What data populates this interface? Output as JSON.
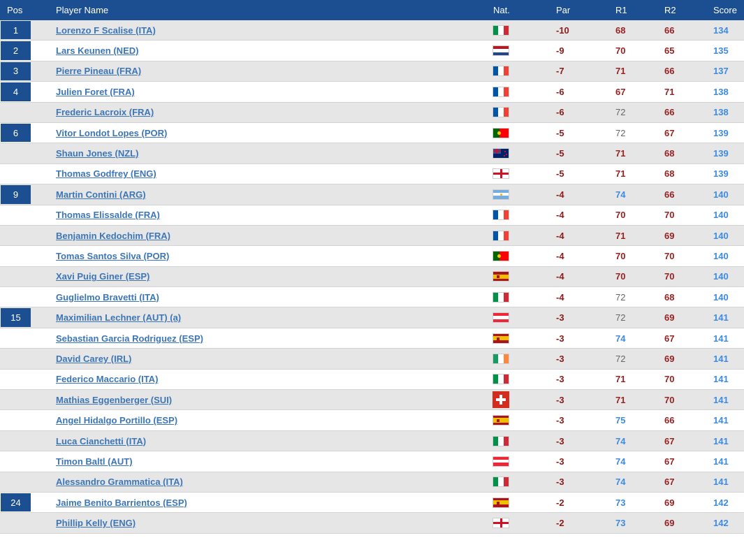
{
  "header": {
    "pos": "Pos",
    "name": "Player Name",
    "nat": "Nat.",
    "par": "Par",
    "r1": "R1",
    "r2": "R2",
    "score": "Score"
  },
  "colors": {
    "header_bg": "#1c4f91",
    "link": "#3d76b6",
    "under_par_round": "#9b2020",
    "over_par_round": "#3d8be0",
    "par_round": "#666666",
    "score": "#3d8be0"
  },
  "rows": [
    {
      "pos": "1",
      "name": "Lorenzo F Scalise (ITA)",
      "nat": "ITA",
      "flag": "italy-flag-icon",
      "par": "-10",
      "r1": "68",
      "r1_style": "red",
      "r2": "66",
      "r2_style": "red",
      "score": "134"
    },
    {
      "pos": "2",
      "name": "Lars Keunen (NED)",
      "nat": "NED",
      "flag": "netherlands-flag-icon",
      "par": "-9",
      "r1": "70",
      "r1_style": "red",
      "r2": "65",
      "r2_style": "red",
      "score": "135"
    },
    {
      "pos": "3",
      "name": "Pierre Pineau (FRA)",
      "nat": "FRA",
      "flag": "france-flag-icon",
      "par": "-7",
      "r1": "71",
      "r1_style": "red",
      "r2": "66",
      "r2_style": "red",
      "score": "137"
    },
    {
      "pos": "4",
      "name": "Julien Foret (FRA)",
      "nat": "FRA",
      "flag": "france-flag-icon",
      "par": "-6",
      "r1": "67",
      "r1_style": "red",
      "r2": "71",
      "r2_style": "red",
      "score": "138"
    },
    {
      "pos": "",
      "name": "Frederic Lacroix (FRA)",
      "nat": "FRA",
      "flag": "france-flag-icon",
      "par": "-6",
      "r1": "72",
      "r1_style": "gray",
      "r2": "66",
      "r2_style": "red",
      "score": "138"
    },
    {
      "pos": "6",
      "name": "Vitor Londot Lopes (POR)",
      "nat": "POR",
      "flag": "portugal-flag-icon",
      "par": "-5",
      "r1": "72",
      "r1_style": "gray",
      "r2": "67",
      "r2_style": "red",
      "score": "139"
    },
    {
      "pos": "",
      "name": "Shaun Jones (NZL)",
      "nat": "NZL",
      "flag": "new-zealand-flag-icon",
      "par": "-5",
      "r1": "71",
      "r1_style": "red",
      "r2": "68",
      "r2_style": "red",
      "score": "139"
    },
    {
      "pos": "",
      "name": "Thomas Godfrey (ENG)",
      "nat": "ENG",
      "flag": "england-flag-icon",
      "par": "-5",
      "r1": "71",
      "r1_style": "red",
      "r2": "68",
      "r2_style": "red",
      "score": "139"
    },
    {
      "pos": "9",
      "name": "Martin Contini (ARG)",
      "nat": "ARG",
      "flag": "argentina-flag-icon",
      "par": "-4",
      "r1": "74",
      "r1_style": "blue",
      "r2": "66",
      "r2_style": "red",
      "score": "140"
    },
    {
      "pos": "",
      "name": "Thomas Elissalde (FRA)",
      "nat": "FRA",
      "flag": "france-flag-icon",
      "par": "-4",
      "r1": "70",
      "r1_style": "red",
      "r2": "70",
      "r2_style": "red",
      "score": "140"
    },
    {
      "pos": "",
      "name": "Benjamin Kedochim (FRA)",
      "nat": "FRA",
      "flag": "france-flag-icon",
      "par": "-4",
      "r1": "71",
      "r1_style": "red",
      "r2": "69",
      "r2_style": "red",
      "score": "140"
    },
    {
      "pos": "",
      "name": "Tomas Santos Silva (POR)",
      "nat": "POR",
      "flag": "portugal-flag-icon",
      "par": "-4",
      "r1": "70",
      "r1_style": "red",
      "r2": "70",
      "r2_style": "red",
      "score": "140"
    },
    {
      "pos": "",
      "name": "Xavi Puig Giner (ESP)",
      "nat": "ESP",
      "flag": "spain-flag-icon",
      "par": "-4",
      "r1": "70",
      "r1_style": "red",
      "r2": "70",
      "r2_style": "red",
      "score": "140"
    },
    {
      "pos": "",
      "name": "Guglielmo Bravetti (ITA)",
      "nat": "ITA",
      "flag": "italy-flag-icon",
      "par": "-4",
      "r1": "72",
      "r1_style": "gray",
      "r2": "68",
      "r2_style": "red",
      "score": "140"
    },
    {
      "pos": "15",
      "name": "Maximilian Lechner (AUT) (a)",
      "nat": "AUT",
      "flag": "austria-flag-icon",
      "par": "-3",
      "r1": "72",
      "r1_style": "gray",
      "r2": "69",
      "r2_style": "red",
      "score": "141"
    },
    {
      "pos": "",
      "name": "Sebastian Garcia Rodriguez (ESP)",
      "nat": "ESP",
      "flag": "spain-flag-icon",
      "par": "-3",
      "r1": "74",
      "r1_style": "blue",
      "r2": "67",
      "r2_style": "red",
      "score": "141"
    },
    {
      "pos": "",
      "name": "David Carey (IRL)",
      "nat": "IRL",
      "flag": "ireland-flag-icon",
      "par": "-3",
      "r1": "72",
      "r1_style": "gray",
      "r2": "69",
      "r2_style": "red",
      "score": "141"
    },
    {
      "pos": "",
      "name": "Federico Maccario (ITA)",
      "nat": "ITA",
      "flag": "italy-flag-icon",
      "par": "-3",
      "r1": "71",
      "r1_style": "red",
      "r2": "70",
      "r2_style": "red",
      "score": "141"
    },
    {
      "pos": "",
      "name": "Mathias Eggenberger (SUI)",
      "nat": "SUI",
      "flag": "switzerland-flag-icon",
      "par": "-3",
      "r1": "71",
      "r1_style": "red",
      "r2": "70",
      "r2_style": "red",
      "score": "141"
    },
    {
      "pos": "",
      "name": "Angel Hidalgo Portillo (ESP)",
      "nat": "ESP",
      "flag": "spain-flag-icon",
      "par": "-3",
      "r1": "75",
      "r1_style": "blue",
      "r2": "66",
      "r2_style": "red",
      "score": "141"
    },
    {
      "pos": "",
      "name": "Luca Cianchetti (ITA)",
      "nat": "ITA",
      "flag": "italy-flag-icon",
      "par": "-3",
      "r1": "74",
      "r1_style": "blue",
      "r2": "67",
      "r2_style": "red",
      "score": "141"
    },
    {
      "pos": "",
      "name": "Timon Baltl (AUT)",
      "nat": "AUT",
      "flag": "austria-flag-icon",
      "par": "-3",
      "r1": "74",
      "r1_style": "blue",
      "r2": "67",
      "r2_style": "red",
      "score": "141"
    },
    {
      "pos": "",
      "name": "Alessandro Grammatica (ITA)",
      "nat": "ITA",
      "flag": "italy-flag-icon",
      "par": "-3",
      "r1": "74",
      "r1_style": "blue",
      "r2": "67",
      "r2_style": "red",
      "score": "141"
    },
    {
      "pos": "24",
      "name": "Jaime Benito Barrientos (ESP)",
      "nat": "ESP",
      "flag": "spain-flag-icon",
      "par": "-2",
      "r1": "73",
      "r1_style": "blue",
      "r2": "69",
      "r2_style": "red",
      "score": "142"
    },
    {
      "pos": "",
      "name": "Phillip Kelly (ENG)",
      "nat": "ENG",
      "flag": "england-flag-icon",
      "par": "-2",
      "r1": "73",
      "r1_style": "blue",
      "r2": "69",
      "r2_style": "red",
      "score": "142"
    }
  ]
}
